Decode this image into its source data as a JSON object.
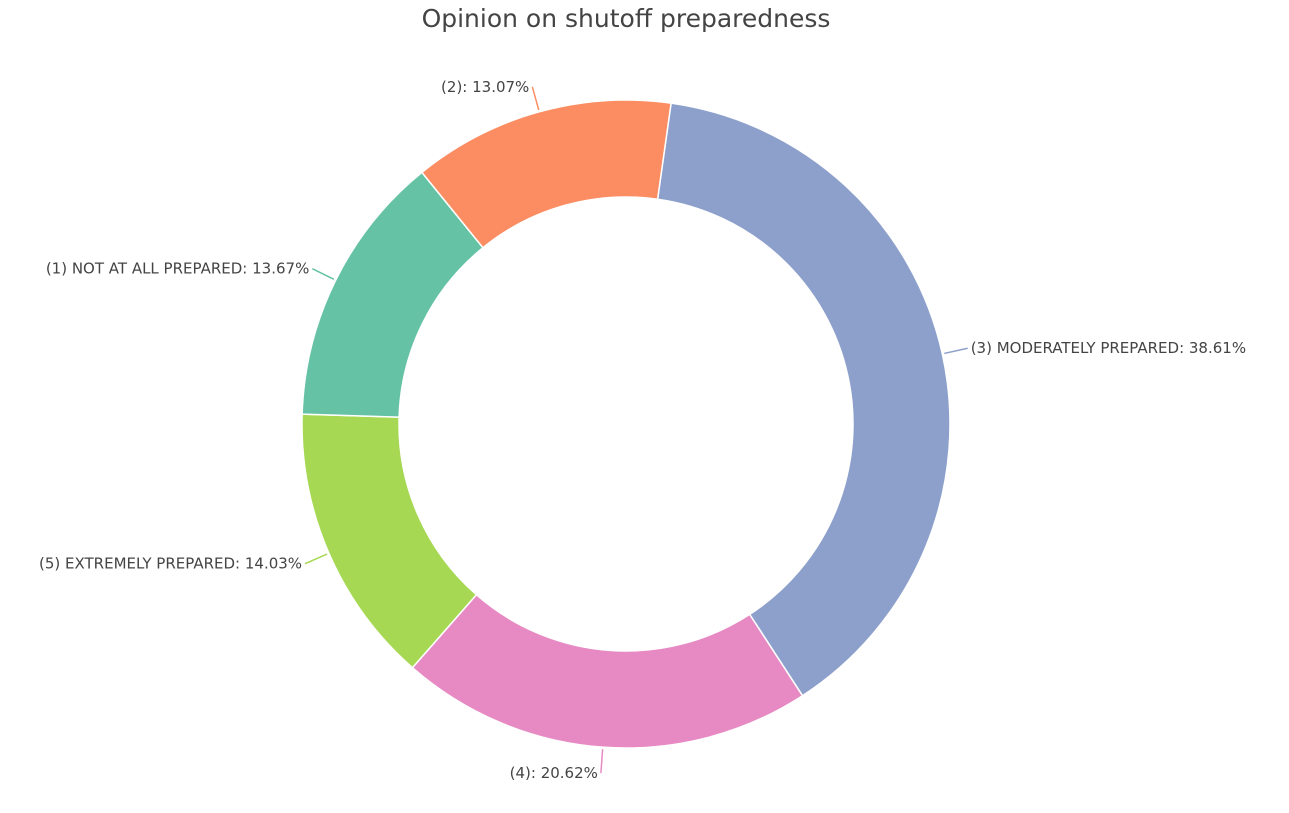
{
  "chart_data": {
    "type": "pie",
    "hole": true,
    "title": "Opinion on shutoff preparedness",
    "slices": [
      {
        "label": "(3) MODERATELY PREPARED: 38.61%",
        "value": 38.61,
        "color": "#8da0cb"
      },
      {
        "label": "(4): 20.62%",
        "value": 20.62,
        "color": "#e78ac3"
      },
      {
        "label": "(5) EXTREMELY PREPARED: 14.03%",
        "value": 14.03,
        "color": "#a6d854"
      },
      {
        "label": "(1) NOT AT ALL PREPARED: 13.67%",
        "value": 13.67,
        "color": "#66c2a5"
      },
      {
        "label": "(2): 13.07%",
        "value": 13.07,
        "color": "#fc8d62"
      }
    ]
  },
  "colors": {
    "text": "#444444",
    "slice_border": "#ffffff"
  }
}
